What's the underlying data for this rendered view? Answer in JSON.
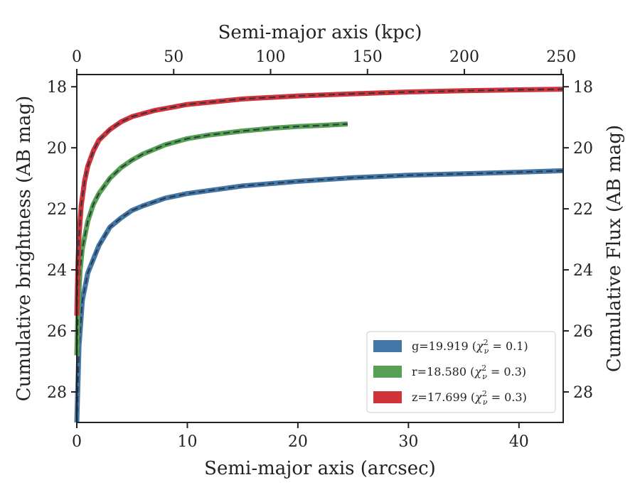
{
  "chart_data": {
    "type": "line",
    "title": "",
    "xlabel": "Semi-major axis (arcsec)",
    "ylabel": "Cumulative brightness (AB mag)",
    "x2label": "Semi-major axis (kpc)",
    "y2label": "Cumulative Flux (AB mag)",
    "xlim": [
      0,
      44
    ],
    "ylim": [
      29.0,
      17.6
    ],
    "y_inverted": true,
    "x2lim": [
      0,
      251
    ],
    "xticks": [
      "0",
      "10",
      "20",
      "30",
      "40"
    ],
    "yticks": [
      "18",
      "20",
      "22",
      "24",
      "26",
      "28"
    ],
    "x2ticks": [
      "0",
      "50",
      "100",
      "150",
      "200",
      "250"
    ],
    "y2ticks": [
      "18",
      "20",
      "22",
      "24",
      "26",
      "28"
    ],
    "grid": false,
    "legend_position": "lower-right",
    "series": [
      {
        "name": "g=19.919",
        "chi": "0.1",
        "color": "#4377a8",
        "x": [
          0.0,
          0.2,
          0.5,
          1,
          2,
          3,
          4,
          5,
          6,
          8,
          10,
          12,
          15,
          20,
          25,
          30,
          35,
          40,
          44
        ],
        "y": [
          29.0,
          26.5,
          25.0,
          24.1,
          23.2,
          22.6,
          22.3,
          22.05,
          21.9,
          21.65,
          21.5,
          21.4,
          21.25,
          21.1,
          20.98,
          20.9,
          20.85,
          20.8,
          20.75
        ]
      },
      {
        "name": "r=18.580",
        "chi": "0.3",
        "color": "#55a052",
        "x": [
          0.0,
          0.1,
          0.3,
          0.5,
          1,
          1.5,
          2,
          3,
          4,
          5,
          6,
          8,
          10,
          12,
          15,
          18,
          20,
          22,
          24.5
        ],
        "y": [
          26.8,
          25.3,
          24.0,
          23.3,
          22.4,
          21.85,
          21.5,
          21.0,
          20.65,
          20.4,
          20.2,
          19.9,
          19.7,
          19.58,
          19.45,
          19.35,
          19.3,
          19.27,
          19.22
        ]
      },
      {
        "name": "z=17.699",
        "chi": "0.3",
        "color": "#d1333a",
        "x": [
          0.0,
          0.1,
          0.2,
          0.4,
          0.7,
          1,
          1.5,
          2,
          3,
          4,
          5,
          7,
          10,
          15,
          20,
          25,
          30,
          35,
          40,
          44
        ],
        "y": [
          25.5,
          23.8,
          22.9,
          21.9,
          21.1,
          20.6,
          20.1,
          19.75,
          19.4,
          19.15,
          18.98,
          18.78,
          18.58,
          18.4,
          18.3,
          18.23,
          18.17,
          18.13,
          18.1,
          18.08
        ]
      }
    ]
  }
}
